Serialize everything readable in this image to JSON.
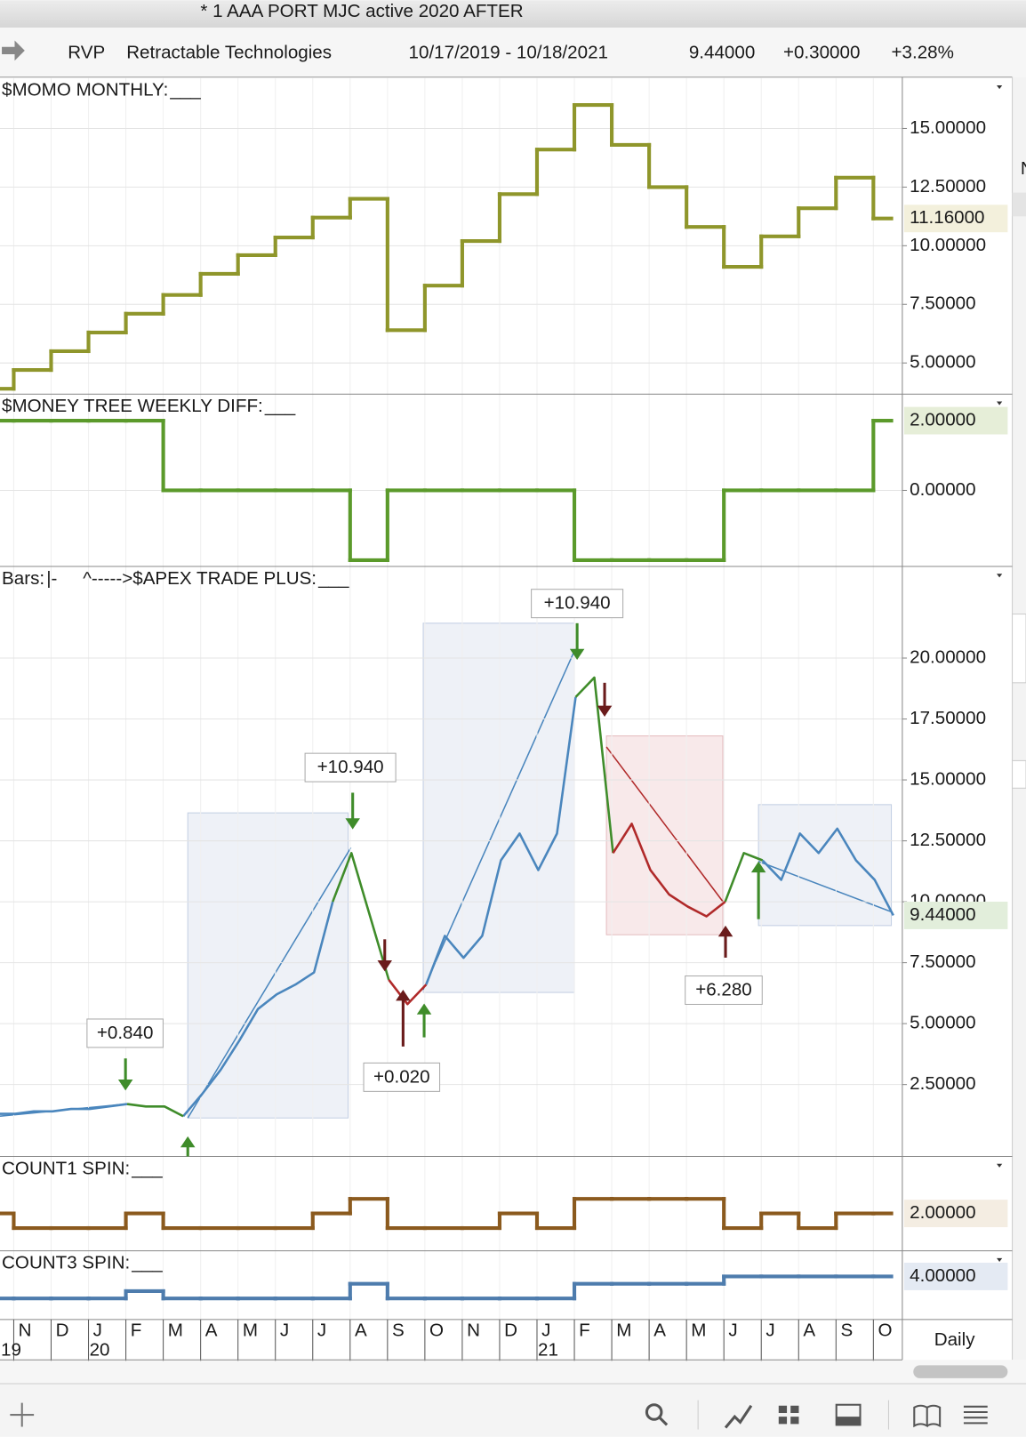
{
  "title_bar": "* 1 AAA PORT MJC active 2020 AFTER",
  "header": {
    "symbol": "RVP",
    "name": "Retractable Technologies",
    "date_range": "10/17/2019 - 10/18/2021",
    "last": "9.44000",
    "change": "+0.30000",
    "change_pct": "+3.28%"
  },
  "side_tab": "N",
  "chart_data": [
    {
      "type": "step",
      "title": "$MOMO MONTHLY:",
      "title_suffix": "___",
      "color": "#8f962b",
      "values": [
        3.9,
        4.7,
        5.5,
        6.3,
        7.1,
        7.9,
        8.8,
        9.6,
        10.35,
        11.2,
        12.0,
        6.4,
        8.3,
        10.2,
        12.2,
        14.1,
        16.0,
        14.3,
        12.5,
        10.8,
        9.1,
        10.4,
        11.6,
        12.9,
        11.16
      ],
      "ylim": [
        3.67,
        17.15
      ],
      "yticks": [
        {
          "value": 5,
          "label": "5.00000"
        },
        {
          "value": 7.5,
          "label": "7.50000"
        },
        {
          "value": 10,
          "label": "10.00000"
        },
        {
          "value": 12.5,
          "label": "12.50000"
        },
        {
          "value": 15,
          "label": "15.00000"
        }
      ],
      "last_label": "11.16000"
    },
    {
      "type": "step",
      "title": "$MONEY TREE WEEKLY DIFF:",
      "title_suffix": "___",
      "color": "#5b9a2b",
      "values": [
        2,
        2,
        2,
        2,
        2,
        0,
        0,
        0,
        0,
        0,
        -2,
        0,
        0,
        0,
        0,
        0,
        -2,
        -2,
        -2,
        -2,
        0,
        0,
        0,
        0,
        2
      ],
      "ylim": [
        -2.18,
        2.76
      ],
      "yticks": [
        {
          "value": 0,
          "label": "0.00000"
        }
      ],
      "last_label": "2.00000"
    },
    {
      "type": "line",
      "title": "Bars:",
      "bar_style": "|-",
      "study": "^----->$APEX TRADE PLUS:",
      "title_suffix": "___",
      "series": [
        {
          "name": "Long",
          "color": "#4a86bd",
          "values": [
            1.3,
            1.3,
            1.4,
            1.4,
            1.5,
            1.5,
            1.6,
            1.7,
            null,
            null,
            1.2,
            2.1,
            3.1,
            4.3,
            5.6,
            6.2,
            6.6,
            7.1,
            10.0,
            null,
            null,
            null,
            null,
            6.6,
            8.6,
            7.7,
            8.6,
            11.7,
            12.8,
            11.3,
            12.8,
            18.4,
            null,
            null,
            null,
            null,
            null,
            null,
            null,
            null,
            null,
            11.7,
            10.9,
            12.8,
            12.0,
            13.0,
            11.7,
            10.9,
            9.44
          ]
        },
        {
          "name": "Exit",
          "color": "#3f8c2a",
          "values": [
            null,
            null,
            null,
            null,
            null,
            null,
            null,
            1.7,
            1.6,
            1.6,
            1.2,
            null,
            null,
            null,
            null,
            null,
            null,
            null,
            10.0,
            12.0,
            9.4,
            6.8,
            null,
            null,
            null,
            null,
            null,
            null,
            null,
            null,
            null,
            18.4,
            19.2,
            12.0,
            null,
            null,
            null,
            null,
            null,
            10.0,
            12.0,
            11.7,
            null,
            null,
            null,
            null,
            null,
            null,
            null
          ]
        },
        {
          "name": "Short",
          "color": "#b02a2a",
          "values": [
            null,
            null,
            null,
            null,
            null,
            null,
            null,
            null,
            null,
            null,
            null,
            null,
            null,
            null,
            null,
            null,
            null,
            null,
            null,
            null,
            null,
            6.8,
            5.8,
            6.6,
            null,
            null,
            null,
            null,
            null,
            null,
            null,
            null,
            null,
            12.0,
            13.2,
            11.3,
            10.3,
            9.8,
            9.4,
            10.0,
            null,
            null,
            null,
            null,
            null,
            null,
            null,
            null,
            null
          ]
        }
      ],
      "ylim": [
        -0.45,
        23.76
      ],
      "yticks": [
        {
          "value": 2.5,
          "label": "2.50000"
        },
        {
          "value": 5,
          "label": "5.00000"
        },
        {
          "value": 7.5,
          "label": "7.50000"
        },
        {
          "value": 10,
          "label": "10.00000"
        },
        {
          "value": 12.5,
          "label": "12.50000"
        },
        {
          "value": 15,
          "label": "15.00000"
        },
        {
          "value": 17.5,
          "label": "17.50000"
        },
        {
          "value": 20,
          "label": "20.00000"
        }
      ],
      "last_label": "9.44000",
      "annotations": [
        "+0.840",
        "+10.940",
        "+0.020",
        "+10.940",
        "+6.280"
      ]
    },
    {
      "type": "step",
      "title": "COUNT1 SPIN:",
      "title_suffix": "___",
      "color": "#8b5a1e",
      "values": [
        2,
        1,
        1,
        1,
        2,
        1,
        1,
        1,
        1,
        2,
        3,
        1,
        1,
        1,
        2,
        1,
        3,
        3,
        3,
        3,
        1,
        2,
        1,
        2,
        2
      ],
      "ylim": [
        -0.56,
        5.9
      ],
      "last_label": "2.00000"
    },
    {
      "type": "step",
      "title": "COUNT3 SPIN:",
      "title_suffix": "___",
      "color": "#4e7cad",
      "values": [
        1,
        1,
        1,
        1,
        2,
        1,
        1,
        1,
        1,
        1,
        3,
        1,
        1,
        1,
        1,
        1,
        3,
        3,
        3,
        3,
        4,
        4,
        4,
        4,
        4
      ],
      "ylim": [
        -1.875,
        7.5
      ],
      "last_label": "4.00000"
    }
  ],
  "x_axis": {
    "months": [
      "N",
      "D",
      "J",
      "F",
      "M",
      "A",
      "M",
      "J",
      "J",
      "A",
      "S",
      "O",
      "N",
      "D",
      "J",
      "F",
      "M",
      "A",
      "M",
      "J",
      "J",
      "A",
      "S",
      "O"
    ],
    "years": [
      "19",
      "20",
      "21"
    ]
  },
  "period_button": "Daily"
}
